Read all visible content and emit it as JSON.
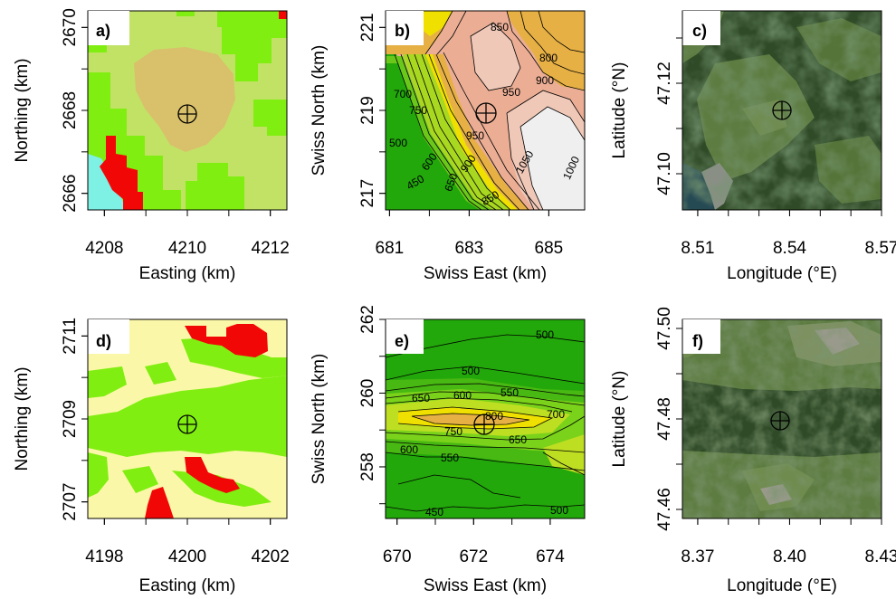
{
  "colors": {
    "lc_lightgreen": "#80ee10",
    "lc_yellowgreen": "#c2e266",
    "lc_tan": "#d9c06b",
    "lc_red": "#f20707",
    "lc_cyan": "#7ff0e4",
    "lc_cream": "#fbf7a8",
    "topo_dark": "#22a80a",
    "topo_mid": "#7ad21a",
    "topo_yellow": "#efe000",
    "topo_orange": "#e6b045",
    "topo_salmon": "#ebae95",
    "topo_pink": "#efc8b8",
    "topo_white": "#efefef",
    "sat_forest": "#2f4a27",
    "sat_field": "#5d7c41",
    "sat_water": "#264a54"
  },
  "chart_data": [
    {
      "type": "heatmap",
      "panel_label": "a)",
      "xlabel": "Easting (km)",
      "ylabel": "Northing (km)",
      "xticks": [
        4208,
        4210,
        4212
      ],
      "yticks": [
        2666,
        2668,
        2670
      ],
      "xlim": [
        4207.6,
        4212.4
      ],
      "ylim": [
        2665.6,
        2670.4
      ],
      "marker": [
        4210.0,
        2668.0
      ]
    },
    {
      "type": "heatmap",
      "panel_label": "b)",
      "xlabel": "Swiss East (km)",
      "ylabel": "Swiss North (km)",
      "xticks": [
        681,
        683,
        685
      ],
      "yticks": [
        217,
        219,
        221
      ],
      "xlim": [
        680.9,
        685.9
      ],
      "ylim": [
        216.6,
        221.4
      ],
      "marker": [
        683.45,
        218.95
      ],
      "contour_labels": [
        "800",
        "850",
        "800",
        "900",
        "950",
        "700",
        "750",
        "950",
        "500",
        "600",
        "900",
        "1050",
        "1000",
        "450",
        "650",
        "850"
      ]
    },
    {
      "type": "heatmap",
      "panel_label": "c)",
      "xlabel": "Longitude (°E)",
      "ylabel": "Latitude (°N)",
      "xticks": [
        "8.51",
        "8.54",
        "8.57"
      ],
      "yticks": [
        "47.10",
        "47.12"
      ],
      "xlim": [
        8.505,
        8.57
      ],
      "ylim": [
        47.092,
        47.136
      ],
      "marker": [
        8.537,
        47.117
      ]
    },
    {
      "type": "heatmap",
      "panel_label": "d)",
      "xlabel": "Easting (km)",
      "ylabel": "Northing (km)",
      "xticks": [
        4198,
        4200,
        4202
      ],
      "yticks": [
        2707,
        2709,
        2711
      ],
      "xlim": [
        4197.6,
        4202.4
      ],
      "ylim": [
        2706.6,
        2711.4
      ],
      "marker": [
        4200.1,
        2708.9
      ]
    },
    {
      "type": "heatmap",
      "panel_label": "e)",
      "xlabel": "Swiss East (km)",
      "ylabel": "Swiss North (km)",
      "xticks": [
        670,
        672,
        674
      ],
      "yticks": [
        258,
        260,
        262
      ],
      "xlim": [
        669.7,
        674.9
      ],
      "ylim": [
        256.6,
        262.0
      ],
      "marker": [
        672.3,
        259.45
      ],
      "contour_labels": [
        "500",
        "500",
        "650",
        "600",
        "550",
        "700",
        "750",
        "800",
        "650",
        "600",
        "550",
        "450",
        "500"
      ]
    },
    {
      "type": "heatmap",
      "panel_label": "f)",
      "xlabel": "Longitude (°E)",
      "ylabel": "Latitude (°N)",
      "xticks": [
        "8.37",
        "8.40",
        "8.43"
      ],
      "yticks": [
        "47.46",
        "47.48",
        "47.50"
      ],
      "xlim": [
        8.365,
        8.43
      ],
      "ylim": [
        47.458,
        47.502
      ],
      "marker": [
        8.398,
        47.482
      ]
    }
  ]
}
